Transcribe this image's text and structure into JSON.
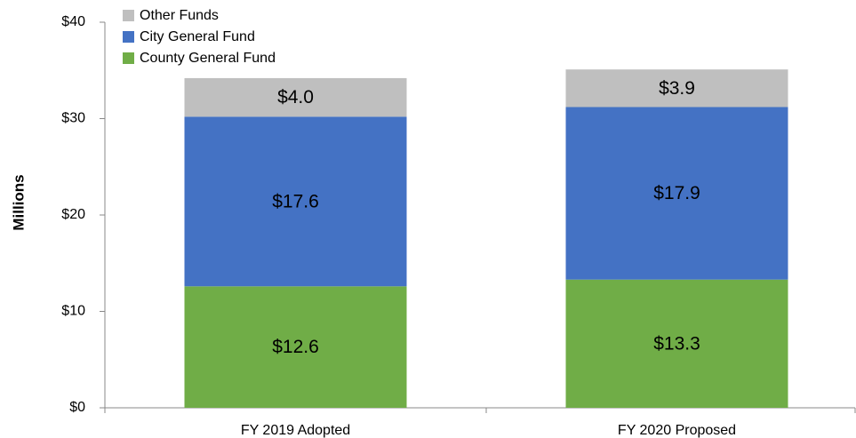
{
  "chart_data": {
    "type": "stacked_bar",
    "y_label": "Millions",
    "categories": [
      "FY 2019 Adopted",
      "FY 2020 Proposed"
    ],
    "series": [
      {
        "name": "County General Fund",
        "color": "#70ad47",
        "values": [
          12.6,
          13.3
        ],
        "value_labels": [
          "$12.6",
          "$13.3"
        ]
      },
      {
        "name": "City General Fund",
        "color": "#4472c4",
        "values": [
          17.6,
          17.9
        ],
        "value_labels": [
          "$17.6",
          "$17.9"
        ]
      },
      {
        "name": "Other Funds",
        "color": "#bfbfbf",
        "values": [
          4.0,
          3.9
        ],
        "value_labels": [
          "$4.0",
          "$3.9"
        ]
      }
    ],
    "ylim": [
      0,
      40
    ],
    "yticks": [
      {
        "value": 0,
        "label": "$0"
      },
      {
        "value": 10,
        "label": "$10"
      },
      {
        "value": 20,
        "label": "$20"
      },
      {
        "value": 30,
        "label": "$30"
      },
      {
        "value": 40,
        "label": "$40"
      }
    ],
    "grid": false,
    "legend": "top-left"
  }
}
